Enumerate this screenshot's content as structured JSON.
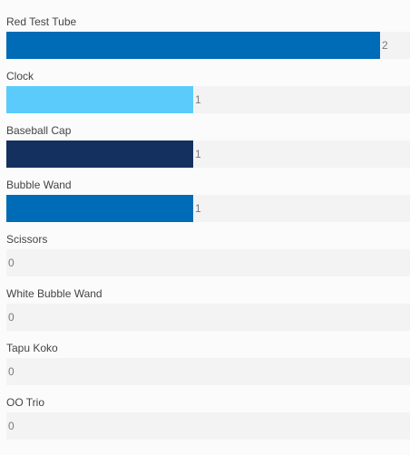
{
  "chart_data": {
    "type": "bar",
    "orientation": "horizontal",
    "categories": [
      "Red Test Tube",
      "Clock",
      "Baseball Cap",
      "Bubble Wand",
      "Scissors",
      "White Bubble Wand",
      "Tapu Koko",
      "OO Trio"
    ],
    "values": [
      2,
      1,
      1,
      1,
      0,
      0,
      0,
      0
    ],
    "colors": [
      "#006bb6",
      "#5bcbfb",
      "#13305f",
      "#006bb6",
      "#006bb6",
      "#006bb6",
      "#006bb6",
      "#006bb6"
    ],
    "xlim": [
      0,
      2
    ],
    "title": "",
    "xlabel": "",
    "ylabel": "",
    "grid": false,
    "legend": "none"
  }
}
